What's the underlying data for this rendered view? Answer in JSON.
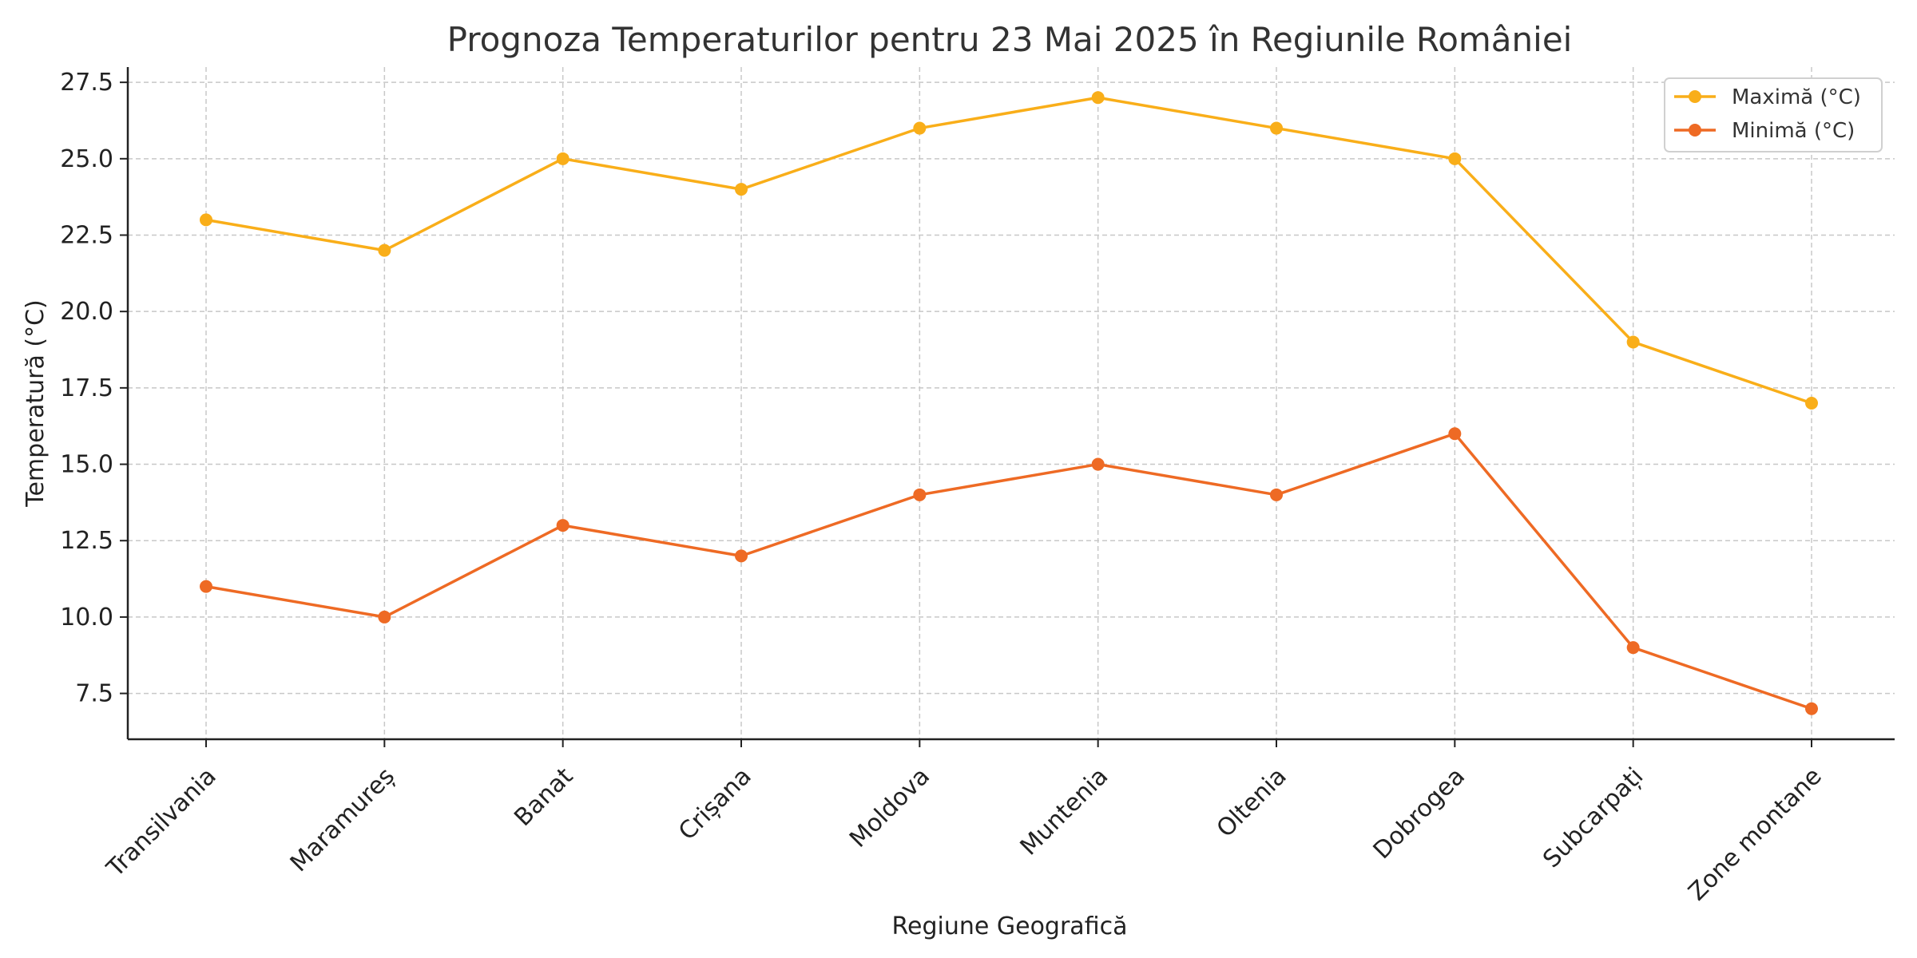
{
  "chart_data": {
    "type": "line",
    "title": "Prognoza Temperaturilor pentru 23 Mai 2025 în Regiunile României",
    "xlabel": "Regiune Geografică",
    "ylabel": "Temperatură (°C)",
    "categories": [
      "Transilvania",
      "Maramureș",
      "Banat",
      "Crișana",
      "Moldova",
      "Muntenia",
      "Oltenia",
      "Dobrogea",
      "Subcarpați",
      "Zone montane"
    ],
    "series": [
      {
        "name": "Maximă (°C)",
        "color": "#F9AE19",
        "values": [
          23,
          22,
          25,
          24,
          26,
          27,
          26,
          25,
          19,
          17
        ]
      },
      {
        "name": "Minimă (°C)",
        "color": "#EE6A24",
        "values": [
          11,
          10,
          13,
          12,
          14,
          15,
          14,
          16,
          9,
          7
        ]
      }
    ],
    "ylim": [
      6,
      28
    ],
    "yticks": [
      7.5,
      10.0,
      12.5,
      15.0,
      17.5,
      20.0,
      22.5,
      25.0,
      27.5
    ],
    "ytick_labels": [
      "7.5",
      "10.0",
      "12.5",
      "15.0",
      "17.5",
      "20.0",
      "22.5",
      "25.0",
      "27.5"
    ],
    "grid": true,
    "legend_position": "top-right"
  }
}
